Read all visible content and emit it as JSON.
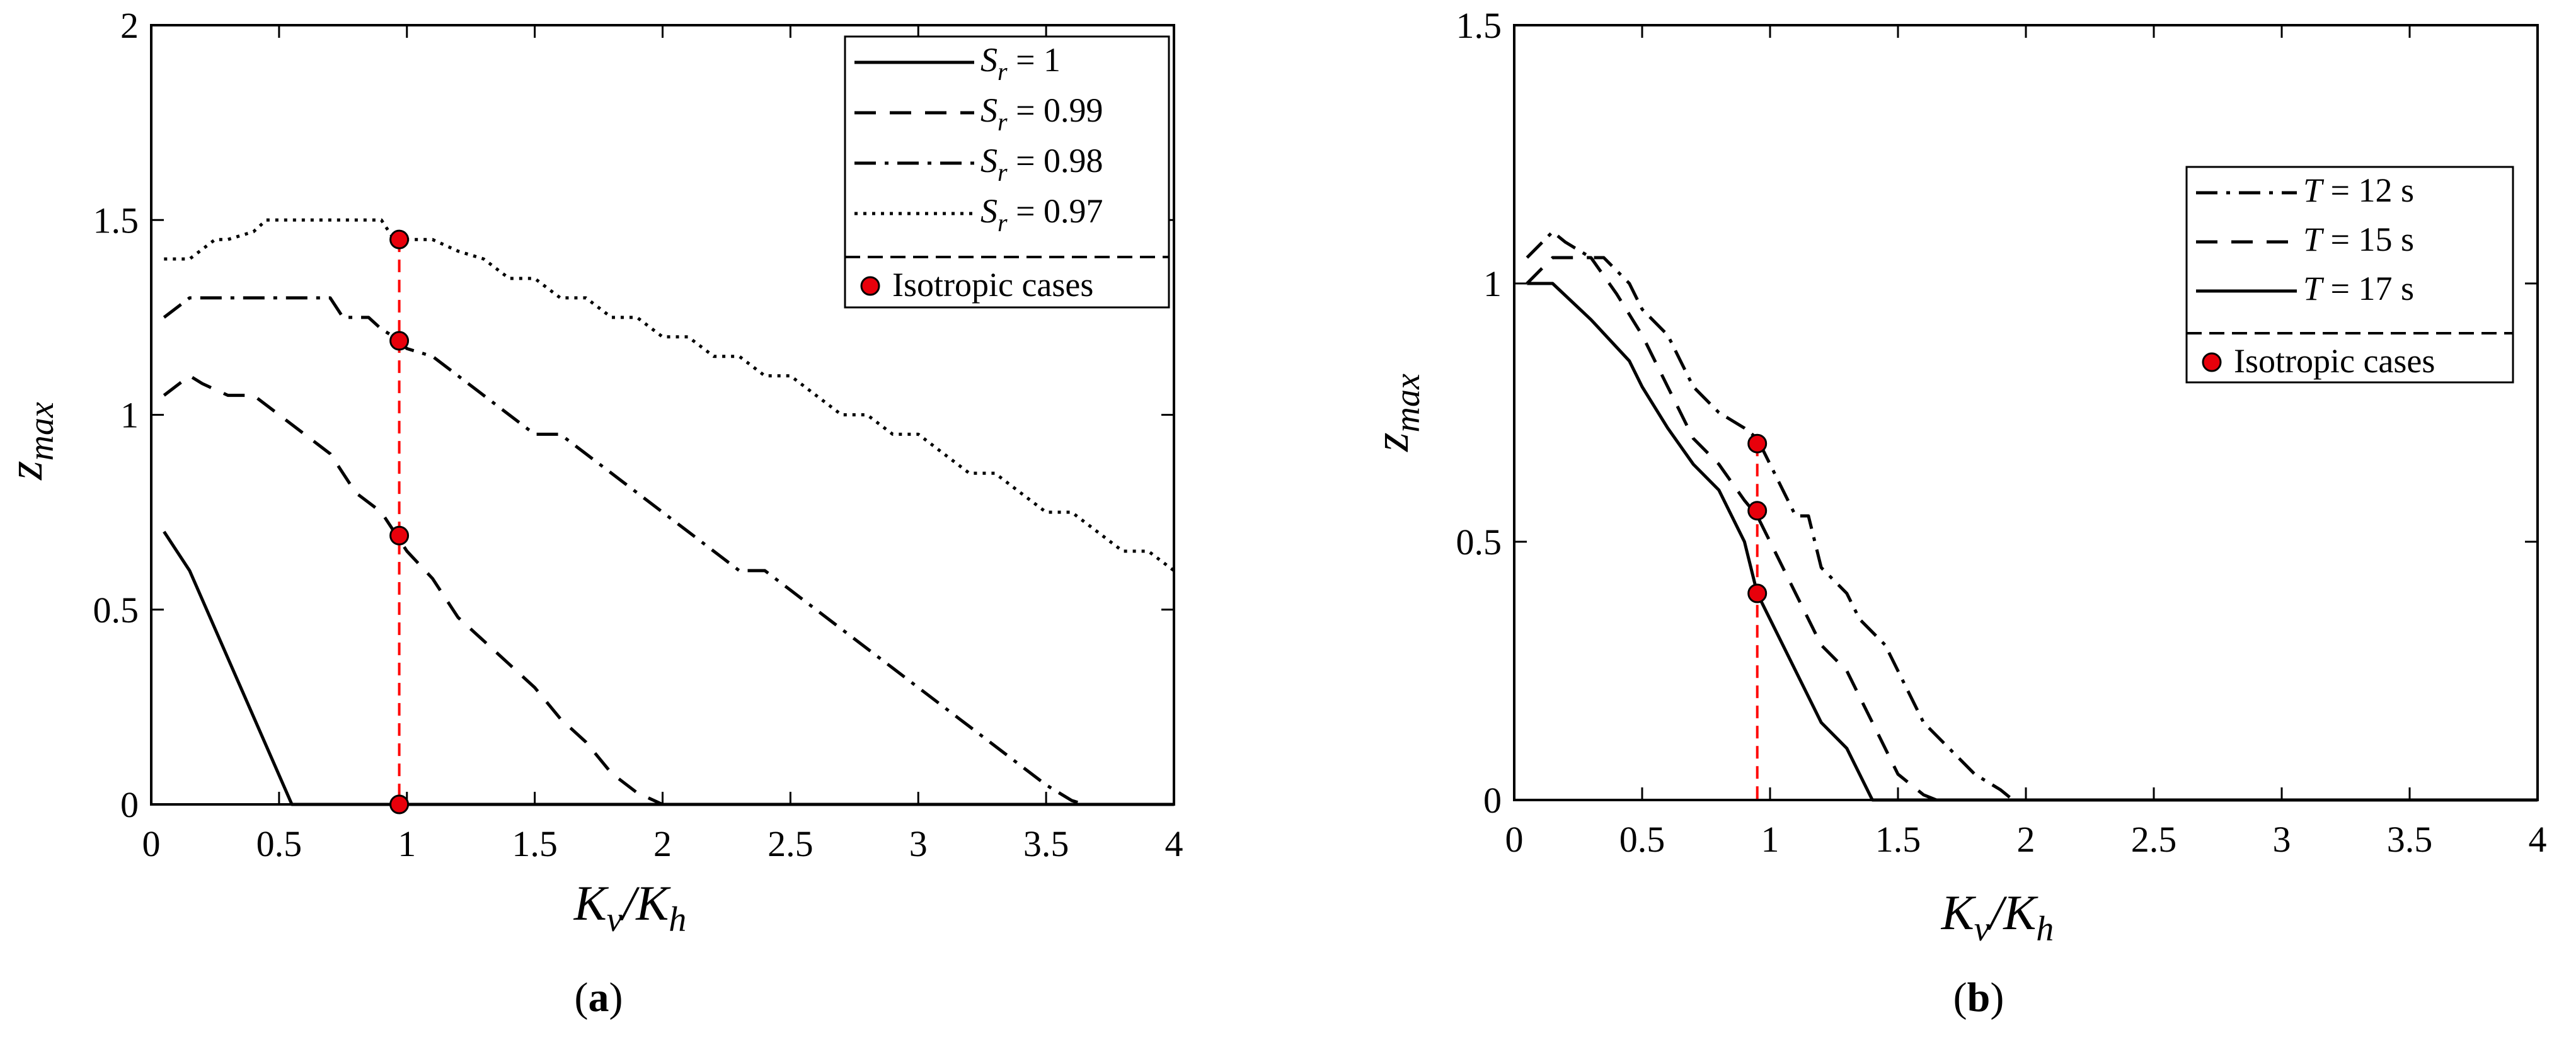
{
  "chart_data": [
    {
      "type": "line",
      "panel_label": "a",
      "xlabel": "K_v/K_h",
      "ylabel": "z_max",
      "xlim": [
        0,
        4
      ],
      "ylim": [
        0,
        2
      ],
      "xticks": [
        {
          "v": 0,
          "label": "0"
        },
        {
          "v": 0.5,
          "label": "0.5"
        },
        {
          "v": 1,
          "label": "1"
        },
        {
          "v": 1.5,
          "label": "1.5"
        },
        {
          "v": 2,
          "label": "2"
        },
        {
          "v": 2.5,
          "label": "2.5"
        },
        {
          "v": 3,
          "label": "3"
        },
        {
          "v": 3.5,
          "label": "3.5"
        },
        {
          "v": 4,
          "label": "4"
        }
      ],
      "yticks": [
        {
          "v": 0,
          "label": "0"
        },
        {
          "v": 0.5,
          "label": "0.5"
        },
        {
          "v": 1,
          "label": "1"
        },
        {
          "v": 1.5,
          "label": "1.5"
        },
        {
          "v": 2,
          "label": "2"
        }
      ],
      "legend_position": "top-right",
      "series": [
        {
          "name": "S_r = 1",
          "sym": "S",
          "sub": "r",
          "val": " = 1",
          "dash": "",
          "x": [
            0.05,
            0.15,
            0.55,
            0.6,
            4.0
          ],
          "y": [
            0.7,
            0.6,
            0.0,
            0.0,
            0.0
          ]
        },
        {
          "name": "S_r = 0.99",
          "sym": "S",
          "sub": "r",
          "val": " = 0.99",
          "dash": "34,22",
          "x": [
            0.05,
            0.15,
            0.2,
            0.3,
            0.4,
            0.5,
            0.6,
            0.7,
            0.8,
            0.9,
            0.95,
            1.0,
            1.1,
            1.2,
            1.3,
            1.4,
            1.5,
            1.6,
            1.7,
            1.8,
            1.9,
            2.0,
            4.0
          ],
          "y": [
            1.05,
            1.1,
            1.08,
            1.05,
            1.05,
            1.0,
            0.95,
            0.9,
            0.8,
            0.75,
            0.7,
            0.65,
            0.58,
            0.48,
            0.42,
            0.36,
            0.3,
            0.22,
            0.16,
            0.08,
            0.03,
            0.0,
            0.0
          ]
        },
        {
          "name": "S_r = 0.98",
          "sym": "S",
          "sub": "r",
          "val": " = 0.98",
          "dash": "34,14,6,14",
          "x": [
            0.05,
            0.15,
            0.25,
            0.7,
            0.75,
            0.85,
            0.9,
            0.95,
            1.0,
            1.1,
            1.2,
            1.3,
            1.4,
            1.5,
            1.6,
            1.7,
            1.8,
            1.9,
            2.0,
            2.1,
            2.2,
            2.3,
            2.4,
            2.5,
            2.6,
            2.7,
            2.8,
            2.9,
            3.0,
            3.1,
            3.2,
            3.3,
            3.4,
            3.5,
            3.6,
            3.65,
            4.0
          ],
          "y": [
            1.25,
            1.3,
            1.3,
            1.3,
            1.25,
            1.25,
            1.22,
            1.2,
            1.17,
            1.15,
            1.1,
            1.05,
            1.0,
            0.95,
            0.95,
            0.9,
            0.85,
            0.8,
            0.75,
            0.7,
            0.65,
            0.6,
            0.6,
            0.55,
            0.5,
            0.45,
            0.4,
            0.35,
            0.3,
            0.25,
            0.2,
            0.15,
            0.1,
            0.05,
            0.01,
            0.0,
            0.0
          ]
        },
        {
          "name": "S_r = 0.97",
          "sym": "S",
          "sub": "r",
          "val": " = 0.97",
          "dash": "5,9",
          "x": [
            0.05,
            0.15,
            0.25,
            0.3,
            0.4,
            0.45,
            0.5,
            0.9,
            0.95,
            1.0,
            1.1,
            1.2,
            1.3,
            1.4,
            1.5,
            1.6,
            1.7,
            1.8,
            1.9,
            2.0,
            2.1,
            2.2,
            2.3,
            2.4,
            2.5,
            2.6,
            2.7,
            2.8,
            2.9,
            3.0,
            3.1,
            3.2,
            3.3,
            3.4,
            3.5,
            3.6,
            3.7,
            3.8,
            3.9,
            4.0
          ],
          "y": [
            1.4,
            1.4,
            1.45,
            1.45,
            1.47,
            1.5,
            1.5,
            1.5,
            1.45,
            1.45,
            1.45,
            1.42,
            1.4,
            1.35,
            1.35,
            1.3,
            1.3,
            1.25,
            1.25,
            1.2,
            1.2,
            1.15,
            1.15,
            1.1,
            1.1,
            1.05,
            1.0,
            1.0,
            0.95,
            0.95,
            0.9,
            0.85,
            0.85,
            0.8,
            0.75,
            0.75,
            0.7,
            0.65,
            0.65,
            0.6
          ]
        }
      ],
      "isotropic": {
        "label": "Isotropic cases",
        "x": 0.97,
        "points": [
          1.45,
          1.19,
          0.69,
          0.0
        ]
      }
    },
    {
      "type": "line",
      "panel_label": "b",
      "xlabel": "K_v/K_h",
      "ylabel": "z_max",
      "xlim": [
        0,
        4
      ],
      "ylim": [
        0,
        1.5
      ],
      "xticks": [
        {
          "v": 0,
          "label": "0"
        },
        {
          "v": 0.5,
          "label": "0.5"
        },
        {
          "v": 1,
          "label": "1"
        },
        {
          "v": 1.5,
          "label": "1.5"
        },
        {
          "v": 2,
          "label": "2"
        },
        {
          "v": 2.5,
          "label": "2.5"
        },
        {
          "v": 3,
          "label": "3"
        },
        {
          "v": 3.5,
          "label": "3.5"
        },
        {
          "v": 4,
          "label": "4"
        }
      ],
      "yticks": [
        {
          "v": 0,
          "label": "0"
        },
        {
          "v": 0.5,
          "label": "0.5"
        },
        {
          "v": 1,
          "label": "1"
        },
        {
          "v": 1.5,
          "label": "1.5"
        }
      ],
      "legend_position": "right",
      "series": [
        {
          "name": "T = 12 s",
          "sym": "T",
          "sub": "",
          "val": " = 12 s",
          "dash": "34,14,6,14",
          "x": [
            0.05,
            0.15,
            0.2,
            0.3,
            0.35,
            0.45,
            0.5,
            0.6,
            0.7,
            0.8,
            0.9,
            0.95,
            1.0,
            1.05,
            1.1,
            1.15,
            1.2,
            1.3,
            1.35,
            1.45,
            1.5,
            1.55,
            1.6,
            1.7,
            1.8,
            1.9,
            1.95,
            4.0
          ],
          "y": [
            1.05,
            1.1,
            1.08,
            1.05,
            1.05,
            1.0,
            0.95,
            0.9,
            0.8,
            0.75,
            0.72,
            0.7,
            0.65,
            0.6,
            0.55,
            0.55,
            0.45,
            0.4,
            0.35,
            0.3,
            0.25,
            0.2,
            0.15,
            0.1,
            0.05,
            0.02,
            0.0,
            0.0
          ]
        },
        {
          "name": "T = 15 s",
          "sym": "T",
          "sub": "",
          "val": " = 15 s",
          "dash": "34,22",
          "x": [
            0.05,
            0.15,
            0.3,
            0.4,
            0.5,
            0.6,
            0.7,
            0.8,
            0.9,
            0.95,
            1.0,
            1.05,
            1.1,
            1.2,
            1.3,
            1.4,
            1.5,
            1.6,
            1.65,
            4.0
          ],
          "y": [
            1.0,
            1.05,
            1.05,
            0.98,
            0.9,
            0.8,
            0.7,
            0.65,
            0.58,
            0.55,
            0.5,
            0.45,
            0.4,
            0.3,
            0.25,
            0.15,
            0.05,
            0.01,
            0.0,
            0.0
          ]
        },
        {
          "name": "T = 17 s",
          "sym": "T",
          "sub": "",
          "val": " = 17 s",
          "dash": "",
          "x": [
            0.05,
            0.15,
            0.3,
            0.45,
            0.5,
            0.6,
            0.7,
            0.8,
            0.9,
            0.95,
            1.0,
            1.1,
            1.2,
            1.3,
            1.35,
            1.4,
            4.0
          ],
          "y": [
            1.0,
            1.0,
            0.93,
            0.85,
            0.8,
            0.72,
            0.65,
            0.6,
            0.5,
            0.4,
            0.35,
            0.25,
            0.15,
            0.1,
            0.05,
            0.0,
            0.0
          ]
        }
      ],
      "isotropic": {
        "label": "Isotropic cases",
        "x": 0.95,
        "points": [
          0.69,
          0.56,
          0.4
        ]
      }
    }
  ]
}
